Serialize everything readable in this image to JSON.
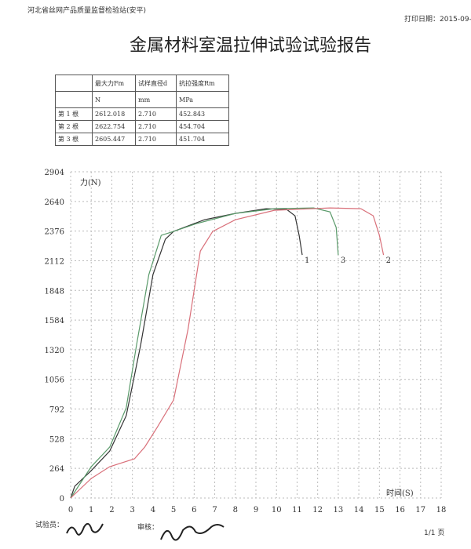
{
  "header": {
    "org": "河北省丝网产品质量监督检验站(安平)",
    "print_date": "打印日期：2015-09-",
    "title": "金属材料室温拉伸试验试验报告"
  },
  "table": {
    "head": [
      "",
      "最大力Fm",
      "试样直径d",
      "抗拉强度Rm"
    ],
    "units": [
      "",
      "N",
      "mm",
      "MPa"
    ],
    "rows": [
      [
        "第 1 根",
        "2612.018",
        "2.710",
        "452.843"
      ],
      [
        "第 2 根",
        "2622.754",
        "2.710",
        "454.704"
      ],
      [
        "第 3 根",
        "2605.447",
        "2.710",
        "451.704"
      ]
    ]
  },
  "chart_data": {
    "type": "line",
    "y_label": "力(N)",
    "x_label": "时间(S)",
    "grid": true,
    "xlim": [
      0,
      18
    ],
    "xticks": [
      0,
      1,
      2,
      3,
      4,
      5,
      6,
      7,
      8,
      9,
      10,
      11,
      12,
      13,
      14,
      15,
      16,
      17,
      18
    ],
    "ylim": [
      0,
      2904
    ],
    "yticks": [
      0,
      264,
      528,
      792,
      1056,
      1320,
      1584,
      1848,
      2112,
      2376,
      2640,
      2904
    ],
    "series": [
      {
        "name": "1",
        "color": "#333333",
        "x": [
          0,
          0.2,
          1,
          1.9,
          2.7,
          3.4,
          4,
          4.6,
          5,
          6.5,
          8,
          9.5,
          10.5,
          10.9,
          11.1,
          11.25
        ],
        "values": [
          0,
          105,
          244,
          419,
          733,
          1361,
          1989,
          2303,
          2373,
          2477,
          2533,
          2575,
          2568,
          2512,
          2338,
          2163
        ]
      },
      {
        "name": "3",
        "color": "#5a9a6a",
        "x": [
          0,
          1,
          1.9,
          2.7,
          3.2,
          3.8,
          4.4,
          5,
          6.1,
          8,
          9.9,
          11.8,
          12.6,
          12.9,
          13
        ],
        "values": [
          0,
          279,
          454,
          803,
          1361,
          1989,
          2338,
          2373,
          2442,
          2533,
          2575,
          2582,
          2547,
          2408,
          2163
        ]
      },
      {
        "name": "2",
        "color": "#d9707a",
        "x": [
          0,
          1,
          1.9,
          3.1,
          3.6,
          4.2,
          5,
          5.7,
          6.3,
          6.9,
          8,
          9.9,
          12.6,
          14.1,
          14.7,
          15,
          15.2
        ],
        "values": [
          0,
          174,
          279,
          349,
          454,
          628,
          872,
          1500,
          2198,
          2373,
          2477,
          2561,
          2582,
          2575,
          2512,
          2338,
          2163
        ]
      }
    ]
  },
  "footer": {
    "tester": "试验员：",
    "reviewer": "审核：",
    "page": "1/1 页"
  }
}
